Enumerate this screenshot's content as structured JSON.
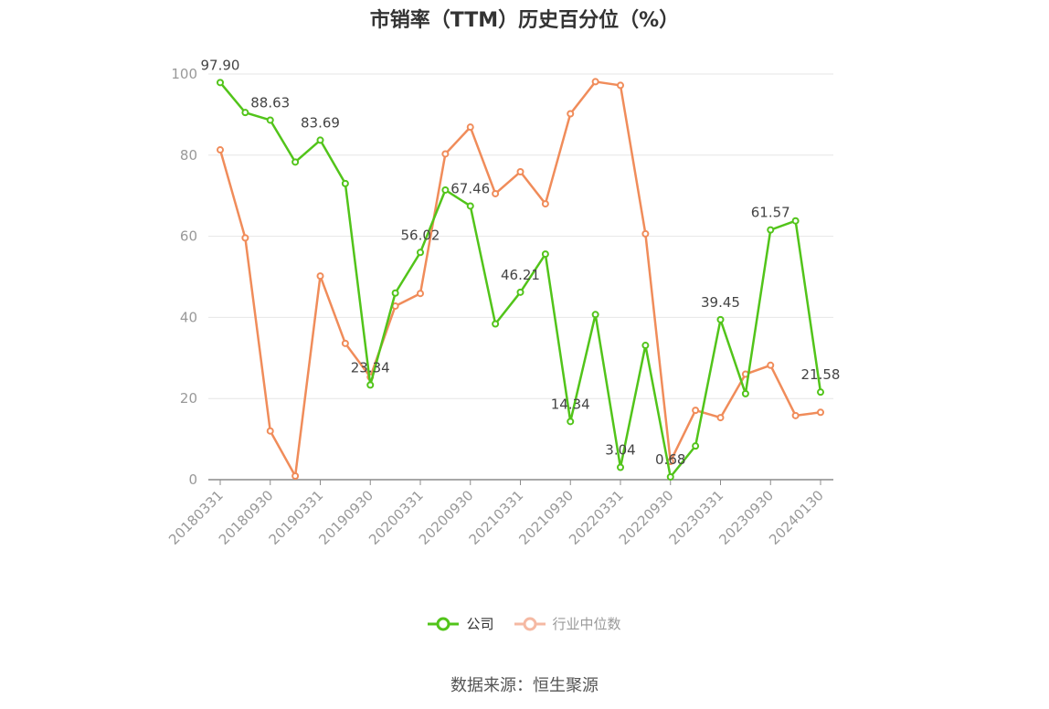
{
  "chart_data": {
    "type": "line",
    "title": "市销率（TTM）历史百分位（%）",
    "x": [
      "20180331",
      "20180630",
      "20180930",
      "20181231",
      "20190331",
      "20190630",
      "20190930",
      "20191231",
      "20200331",
      "20200630",
      "20200930",
      "20201231",
      "20210331",
      "20210630",
      "20210930",
      "20211231",
      "20220331",
      "20220630",
      "20220930",
      "20221231",
      "20230331",
      "20230630",
      "20230930",
      "20231231",
      "20240130"
    ],
    "x_tick_labels": [
      "20180331",
      "20180930",
      "20190331",
      "20190930",
      "20200331",
      "20200930",
      "20210331",
      "20210930",
      "20220331",
      "20220930",
      "20230331",
      "20230930",
      "20240130"
    ],
    "ylim": [
      0,
      100
    ],
    "y_ticks": [
      0,
      20,
      40,
      60,
      80,
      100
    ],
    "grid": true,
    "legend_position": "bottom",
    "series": [
      {
        "name": "公司",
        "color": "#52c41a",
        "values": [
          97.9,
          90.5,
          88.63,
          78.3,
          83.69,
          73.0,
          23.34,
          46.0,
          56.02,
          71.4,
          67.46,
          38.4,
          46.21,
          55.6,
          14.34,
          40.7,
          3.04,
          33.1,
          0.68,
          8.3,
          39.45,
          21.2,
          61.57,
          63.8,
          21.58
        ],
        "labels": {
          "0": "97.90",
          "2": "88.63",
          "4": "83.69",
          "6": "23.34",
          "8": "56.02",
          "10": "67.46",
          "12": "46.21",
          "14": "14.34",
          "16": "3.04",
          "18": "0.68",
          "20": "39.45",
          "22": "61.57",
          "24": "21.58"
        }
      },
      {
        "name": "行业中位数",
        "color": "#f08c5a",
        "values": [
          81.3,
          59.6,
          12.0,
          0.9,
          50.2,
          33.6,
          25.3,
          42.8,
          45.9,
          80.3,
          86.9,
          70.5,
          75.9,
          68.0,
          90.2,
          98.1,
          97.2,
          60.6,
          4.5,
          17.1,
          15.3,
          26.0,
          28.2,
          15.8,
          16.6
        ]
      }
    ]
  },
  "legend": {
    "items": [
      {
        "label": "公司",
        "color": "#52c41a"
      },
      {
        "label": "行业中位数",
        "color": "#f5b9a3"
      }
    ]
  },
  "source": "数据来源：恒生聚源"
}
